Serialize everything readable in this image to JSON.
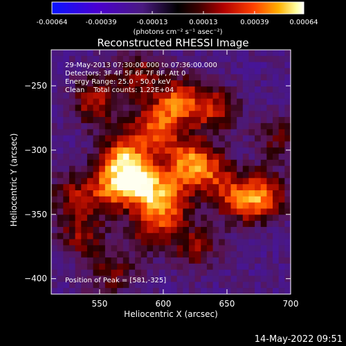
{
  "colorbar": {
    "tick_labels": [
      "-0.00064",
      "-0.00039",
      "-0.00013",
      "0.00013",
      "0.00039",
      "0.00064"
    ],
    "range": [
      -0.00064,
      0.00064
    ],
    "units_label": "(photons cm⁻² s⁻¹ asec⁻²)",
    "colors": [
      "#0a14ff",
      "#4a00d0",
      "#4a1a80",
      "#000000",
      "#3a0000",
      "#b00000",
      "#ff4000",
      "#ffb000",
      "#ffffa0",
      "#ffffff"
    ]
  },
  "chart_data": {
    "type": "heatmap",
    "title": "Reconstructed RHESSI Image",
    "xlabel": "Heliocentric X (arcsec)",
    "ylabel": "Heliocentric Y (arcsec)",
    "xlim": [
      512,
      700
    ],
    "ylim": [
      -412,
      -222
    ],
    "x_ticks": [
      550,
      600,
      650,
      700
    ],
    "y_ticks": [
      -250,
      -300,
      -350,
      -400
    ],
    "x_tick_labels": [
      "550",
      "600",
      "650",
      "700"
    ],
    "y_tick_labels": [
      "-250",
      "-300",
      "-350",
      "-400"
    ],
    "annotations": [
      "29-May-2013 07:30:00.000 to 07:36:00.000",
      "Detectors: 3F 4F 5F 6F 7F 8F, Att 0",
      "Energy Range: 25.0 - 50.0 keV",
      "Clean    Total counts: 1.22E+04"
    ],
    "peak_label": "Position of Peak = [581,-325]",
    "peak": [
      581,
      -325
    ],
    "hotspots": [
      {
        "x": 581,
        "y": -325,
        "amp": 1.0
      },
      {
        "x": 568,
        "y": -305,
        "amp": 0.75
      },
      {
        "x": 593,
        "y": -282,
        "amp": 0.7
      },
      {
        "x": 612,
        "y": -262,
        "amp": 0.7
      },
      {
        "x": 547,
        "y": -262,
        "amp": 0.6
      },
      {
        "x": 557,
        "y": -330,
        "amp": 0.65
      },
      {
        "x": 603,
        "y": -340,
        "amp": 0.75
      },
      {
        "x": 618,
        "y": -308,
        "amp": 0.7
      },
      {
        "x": 640,
        "y": -268,
        "amp": 0.55
      },
      {
        "x": 636,
        "y": -318,
        "amp": 0.55
      },
      {
        "x": 658,
        "y": -338,
        "amp": 0.55
      },
      {
        "x": 678,
        "y": -336,
        "amp": 0.7
      },
      {
        "x": 590,
        "y": -362,
        "amp": 0.5
      },
      {
        "x": 535,
        "y": -365,
        "amp": 0.45
      },
      {
        "x": 528,
        "y": -335,
        "amp": 0.4
      },
      {
        "x": 560,
        "y": -395,
        "amp": 0.4
      },
      {
        "x": 625,
        "y": -375,
        "amp": 0.45
      },
      {
        "x": 690,
        "y": -290,
        "amp": 0.35
      },
      {
        "x": 580,
        "y": -240,
        "amp": 0.45
      }
    ]
  },
  "timestamp": "14-May-2022 09:51"
}
